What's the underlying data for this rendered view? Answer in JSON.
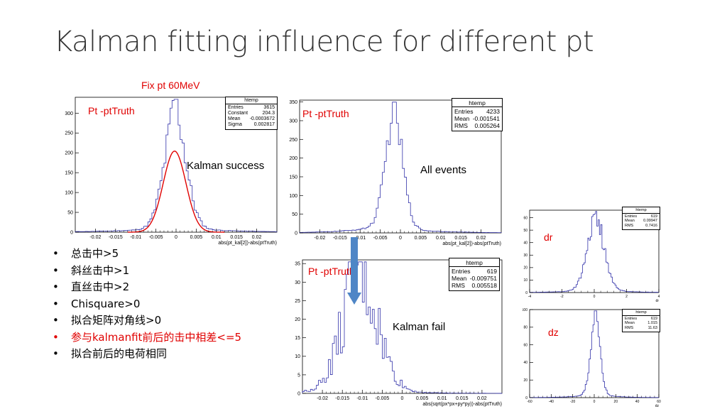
{
  "slide": {
    "title": "Kalman fitting influence for different pt",
    "fix_label": "Fix pt 60MeV",
    "bullets": [
      {
        "text": "总击中>5",
        "color": "#000000"
      },
      {
        "text": "斜丝击中>1",
        "color": "#000000"
      },
      {
        "text": "直丝击中>2",
        "color": "#000000"
      },
      {
        "text": "Chisquare>0",
        "color": "#000000"
      },
      {
        "text": "拟合矩阵对角线>0",
        "color": "#000000"
      },
      {
        "text": "参与kalmanfit前后的击中相差<=5",
        "color": "#e00000"
      },
      {
        "text": "拟合前后的电荷相同",
        "color": "#000000"
      }
    ],
    "arrow_color": "#4f86c6"
  },
  "chart_data": [
    {
      "type": "bar",
      "id": "success",
      "series_label": "Pt -ptTruth",
      "annotation": "Kalman success",
      "xlabel": "abs(pt_kal[2])-abs(ptTruth)",
      "xlim": [
        -0.025,
        0.025
      ],
      "ylim": [
        0,
        340
      ],
      "xticks": [
        -0.02,
        -0.015,
        -0.01,
        -0.005,
        0,
        0.005,
        0.01,
        0.015,
        0.02
      ],
      "xticklabels": [
        "-0.02",
        "-0.015",
        "-0.01",
        "-0.005",
        "0",
        "0.005",
        "0.01",
        "0.015",
        "0.02"
      ],
      "yticks": [
        0,
        50,
        100,
        150,
        200,
        250,
        300
      ],
      "hist": {
        "mean": -0.0002,
        "sigma": 0.0028,
        "tail": 0.011,
        "peak": 330,
        "core": 0.0012,
        "gaussSigma": 0.002817,
        "gaussMean": -0.0003672,
        "gaussConst": 204.3
      },
      "fit": true,
      "stats": {
        "title": "htemp",
        "rows": [
          [
            "Entries",
            "3615"
          ],
          [
            "Constant",
            "204.3"
          ],
          [
            "Mean",
            "-0.0003672"
          ],
          [
            "Sigma",
            "0.002817"
          ]
        ]
      }
    },
    {
      "type": "bar",
      "id": "all",
      "series_label": "Pt -ptTruth",
      "annotation": "All events",
      "xlabel": "abs(pt_kal[2])-abs(ptTruth)",
      "xlim": [
        -0.025,
        0.025
      ],
      "ylim": [
        0,
        355
      ],
      "xticks": [
        -0.02,
        -0.015,
        -0.01,
        -0.005,
        0,
        0.005,
        0.01,
        0.015,
        0.02
      ],
      "xticklabels": [
        "-0.02",
        "-0.015",
        "-0.01",
        "-0.005",
        "0",
        "0.005",
        "0.01",
        "0.015",
        "0.02"
      ],
      "yticks": [
        0,
        50,
        100,
        150,
        200,
        250,
        300,
        350
      ],
      "hist": {
        "mean": -0.0015,
        "sigma": 0.0022,
        "tail": 0.009,
        "peak": 345,
        "core": 0.001,
        "skew": 1
      },
      "fit": false,
      "stats": {
        "title": "htemp",
        "rows": [
          [
            "Entries",
            "4233"
          ],
          [
            "Mean",
            "-0.001541"
          ],
          [
            "RMS",
            "0.005264"
          ]
        ]
      }
    },
    {
      "type": "bar",
      "id": "fail",
      "series_label": "Pt -ptTruth",
      "annotation": "Kalman fail",
      "xlabel": "abs(sqrt(px*px+py*py))-abs(ptTruth)",
      "xlim": [
        -0.025,
        0.025
      ],
      "ylim": [
        0,
        36
      ],
      "xticks": [
        -0.02,
        -0.015,
        -0.01,
        -0.005,
        0,
        0.005,
        0.01,
        0.015,
        0.02
      ],
      "xticklabels": [
        "-0.02",
        "-0.015",
        "-0.01",
        "-0.005",
        "0",
        "0.005",
        "0.01",
        "0.015",
        "0.02"
      ],
      "yticks": [
        0,
        5,
        10,
        15,
        20,
        25,
        30,
        35
      ],
      "hist": {
        "mean": -0.0105,
        "sigma": 0.0045,
        "tail": 0.008,
        "peak": 34,
        "core": 0.003,
        "noisy": true
      },
      "fit": false,
      "stats": {
        "title": "htemp",
        "rows": [
          [
            "Entries",
            "619"
          ],
          [
            "Mean",
            "-0.009751"
          ],
          [
            "RMS",
            "0.005518"
          ]
        ]
      }
    },
    {
      "type": "bar",
      "id": "dr",
      "series_label": "dr",
      "xlabel": "dr",
      "xlim": [
        -4,
        4
      ],
      "ylim": [
        0,
        66
      ],
      "xticks": [
        -4,
        -2,
        0,
        2,
        4
      ],
      "xticklabels": [
        "-4",
        "-2",
        "0",
        "2",
        "4"
      ],
      "yticks": [
        0,
        10,
        20,
        30,
        40,
        50,
        60
      ],
      "hist": {
        "mean": 0.1,
        "sigma": 0.55,
        "tail": 1.6,
        "peak": 63,
        "core": 0.3
      },
      "fit": false,
      "stats": {
        "title": "htemp",
        "rows": [
          [
            "Entries",
            "619"
          ],
          [
            "Mean",
            "0.09947"
          ],
          [
            "RMS",
            "0.7416"
          ]
        ]
      }
    },
    {
      "type": "bar",
      "id": "dz",
      "series_label": "dz",
      "xlabel": "dz",
      "xlim": [
        -60,
        60
      ],
      "ylim": [
        0,
        100
      ],
      "xticks": [
        -60,
        -40,
        -20,
        0,
        20,
        40,
        60
      ],
      "xticklabels": [
        "-60",
        "-40",
        "-20",
        "0",
        "20",
        "40",
        "60"
      ],
      "yticks": [
        0,
        20,
        40,
        60,
        80,
        100
      ],
      "hist": {
        "mean": 1.0,
        "sigma": 4.5,
        "tail": 18,
        "peak": 97,
        "core": 2.5
      },
      "fit": false,
      "stats": {
        "title": "htemp",
        "rows": [
          [
            "Entries",
            "619"
          ],
          [
            "Mean",
            "1.015"
          ],
          [
            "RMS",
            "11.63"
          ]
        ]
      }
    }
  ]
}
